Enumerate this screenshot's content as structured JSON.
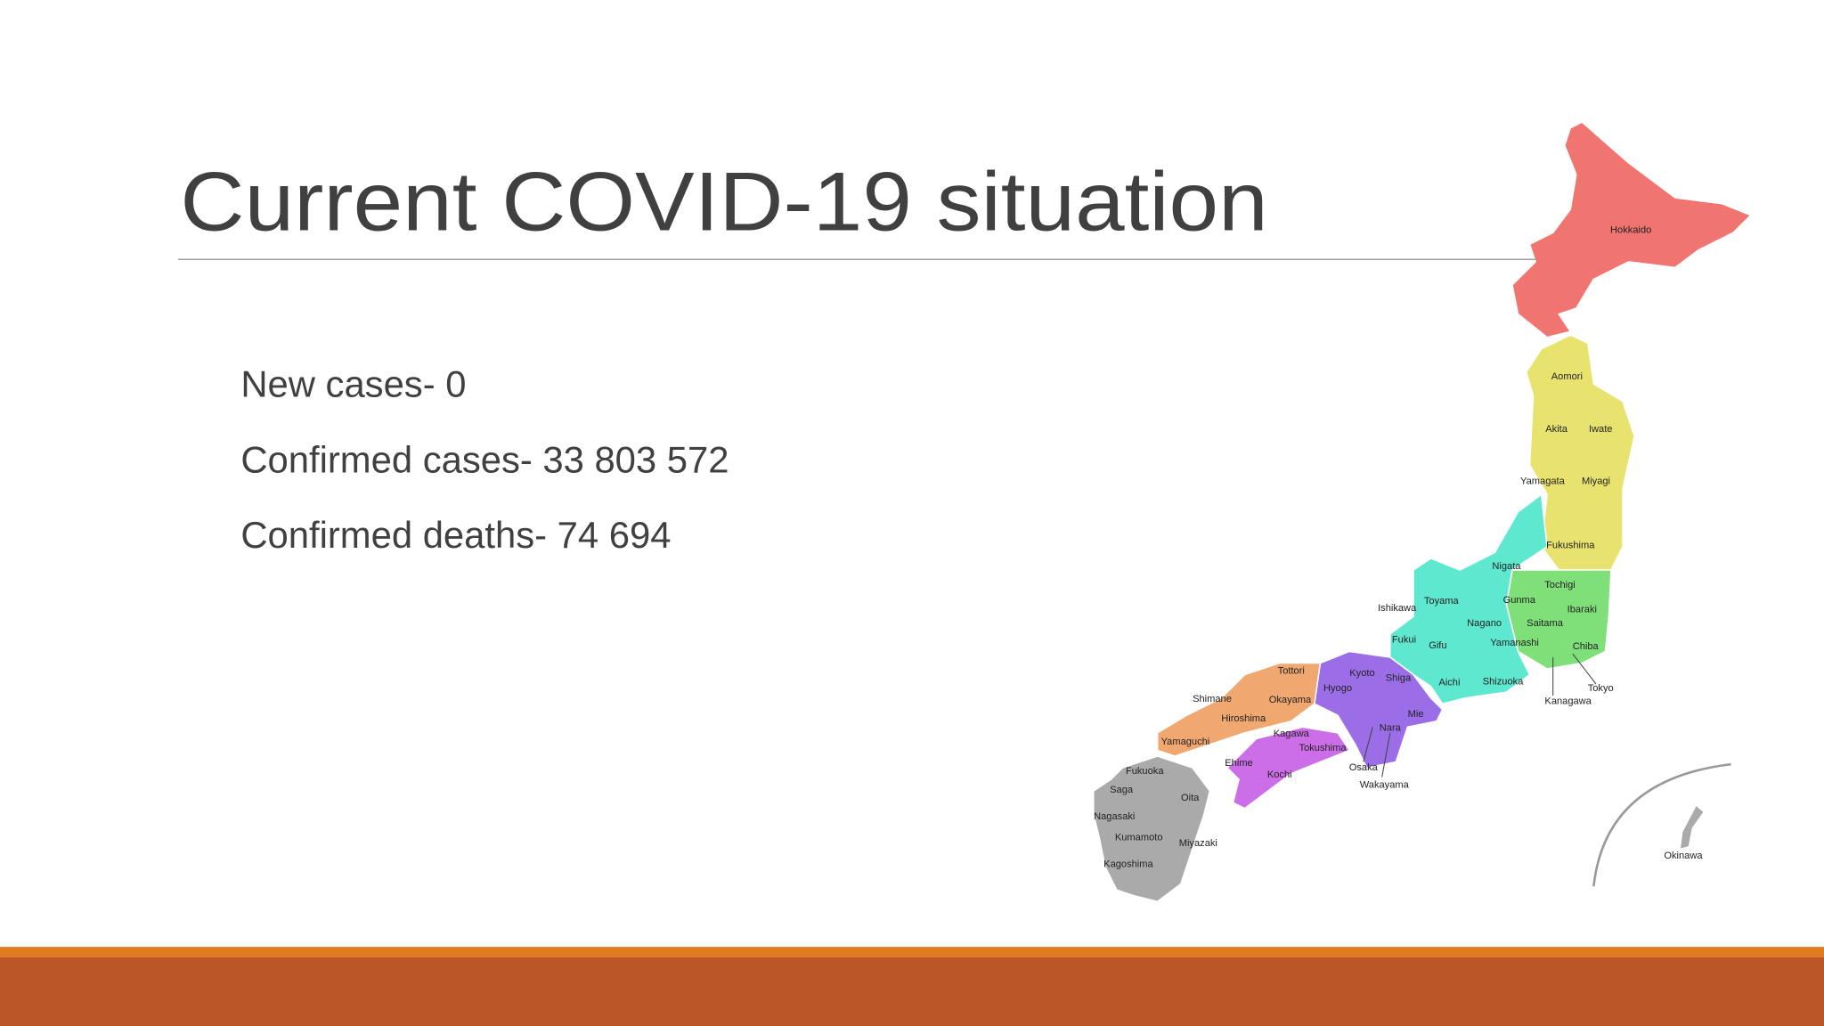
{
  "slide": {
    "title": "Current COVID-19 situation",
    "bullets": [
      "New cases- 0",
      "Confirmed cases- 33 803 572",
      "Confirmed deaths- 74 694"
    ],
    "map": {
      "labels": [
        "Hokkaido",
        "Aomori",
        "Iwate",
        "Akita",
        "Yamagata",
        "Miyagi",
        "Fukushima",
        "Nigata",
        "Tochigi",
        "Gunma",
        "Ibaraki",
        "Saitama",
        "Chiba",
        "Tokyo",
        "Kanagawa",
        "Yamanashi",
        "Shizuoka",
        "Aichi",
        "Gifu",
        "Nagano",
        "Toyama",
        "Ishikawa",
        "Fukui",
        "Shiga",
        "Kyoto",
        "Hyogo",
        "Mie",
        "Nara",
        "Osaka",
        "Wakayama",
        "Tottori",
        "Okayama",
        "Shimane",
        "Hiroshima",
        "Yamaguchi",
        "Kagawa",
        "Tokushima",
        "Ehime",
        "Kochi",
        "Fukuoka",
        "Saga",
        "Oita",
        "Nagasaki",
        "Kumamoto",
        "Miyazaki",
        "Kagoshima",
        "Okinawa"
      ]
    }
  }
}
